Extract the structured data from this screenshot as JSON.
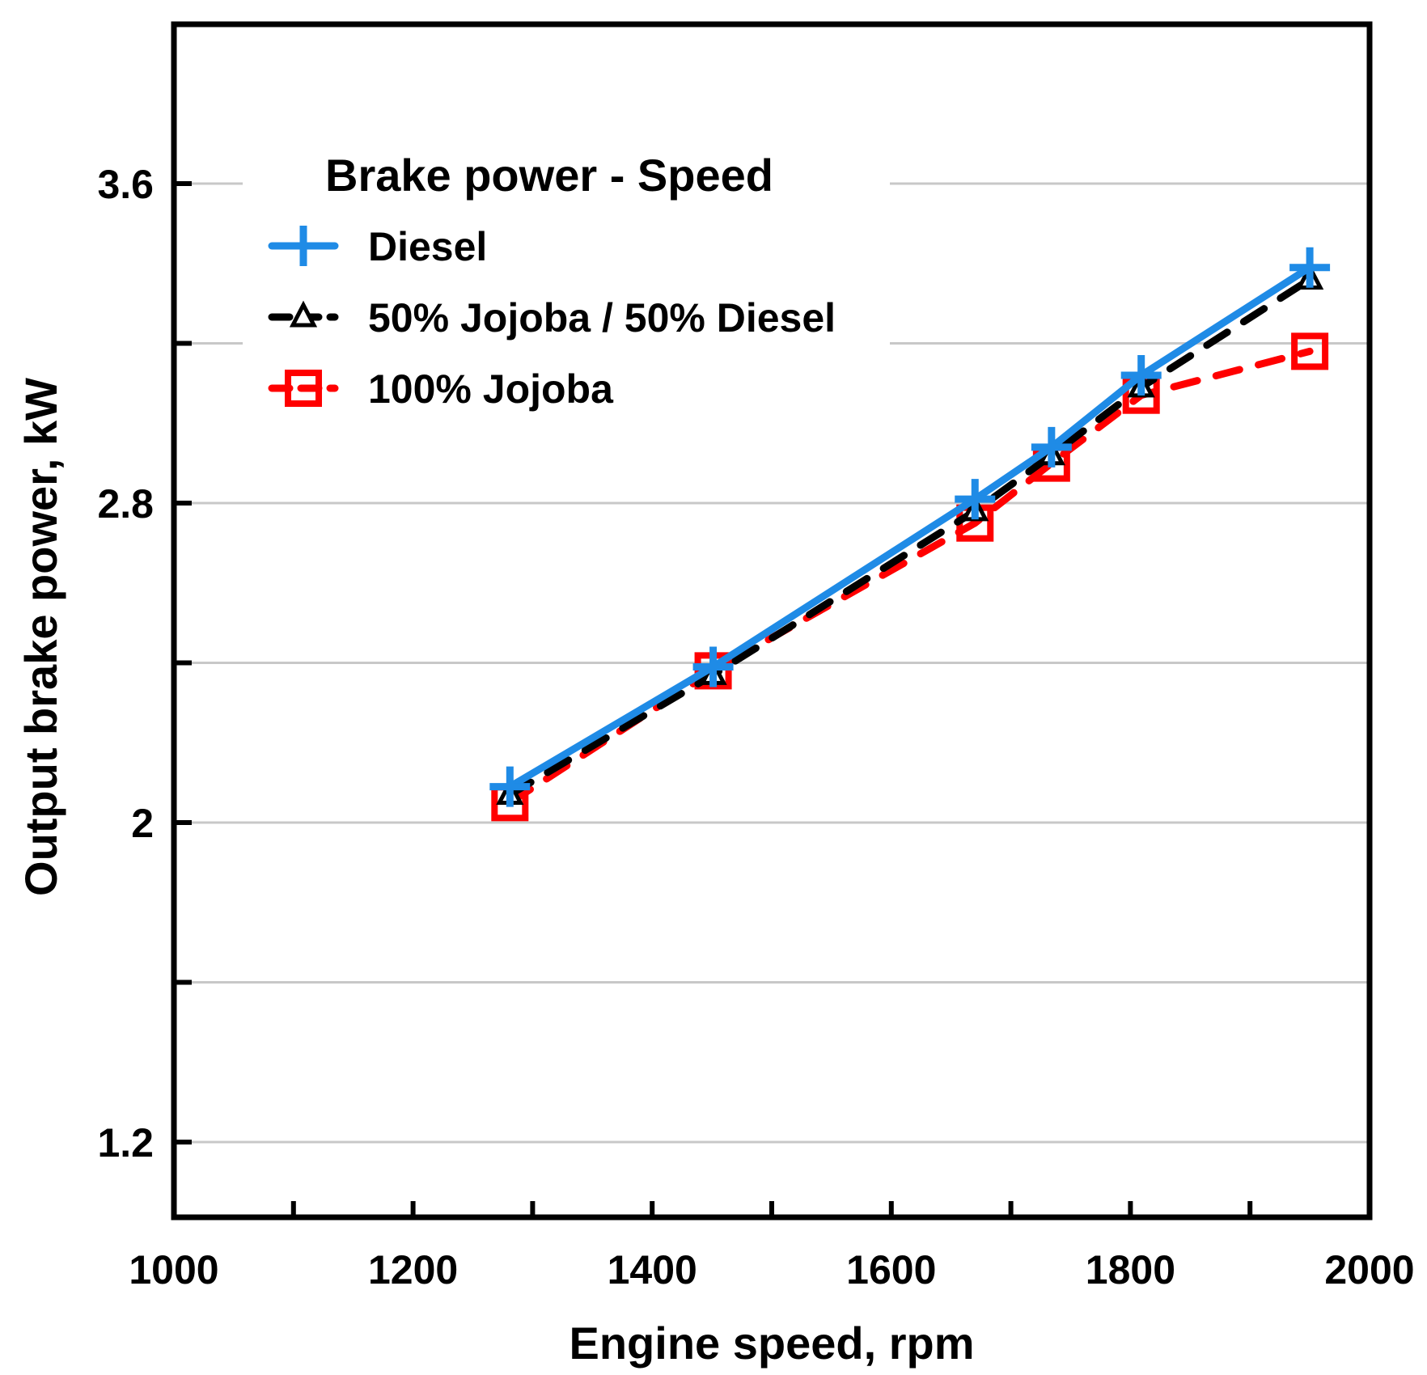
{
  "chart_data": {
    "type": "line",
    "title": "",
    "xlabel": "Engine speed, rpm",
    "ylabel": "Output brake power, kW",
    "xlim": [
      1000,
      2000
    ],
    "ylim": [
      0.9,
      3.9
    ],
    "x_ticks": [
      1000,
      1200,
      1400,
      1600,
      1800,
      2000
    ],
    "x_tick_labels": [
      "1000",
      "1200",
      "1400",
      "1600",
      "1800",
      "2000"
    ],
    "x_minor_ticks": [
      1100,
      1300,
      1500,
      1700,
      1900
    ],
    "y_ticks": [
      1.2,
      2.0,
      2.8,
      3.6
    ],
    "y_tick_labels": [
      "1.2",
      "2",
      "2.8",
      "3.6"
    ],
    "y_minor_ticks": [
      1.6,
      2.4,
      3.2
    ],
    "grid": true,
    "legend": {
      "title": "Brake power - Speed",
      "position": "top-left"
    },
    "series": [
      {
        "name": "Diesel",
        "color": "#1f8be6",
        "marker": "plus",
        "line": "solid",
        "x": [
          1281,
          1451,
          1670,
          1734,
          1809,
          1950
        ],
        "y": [
          2.09,
          2.39,
          2.81,
          2.94,
          3.12,
          3.39
        ]
      },
      {
        "name": "50% Jojoba / 50% Diesel",
        "color": "#000000",
        "marker": "triangle",
        "line": "dashed",
        "x": [
          1281,
          1451,
          1670,
          1734,
          1809,
          1950
        ],
        "y": [
          2.07,
          2.37,
          2.78,
          2.92,
          3.09,
          3.36
        ]
      },
      {
        "name": "100% Jojoba",
        "color": "#ff0000",
        "marker": "square",
        "line": "dashed",
        "x": [
          1281,
          1451,
          1670,
          1734,
          1809,
          1950
        ],
        "y": [
          2.05,
          2.38,
          2.75,
          2.9,
          3.07,
          3.18
        ]
      }
    ]
  }
}
